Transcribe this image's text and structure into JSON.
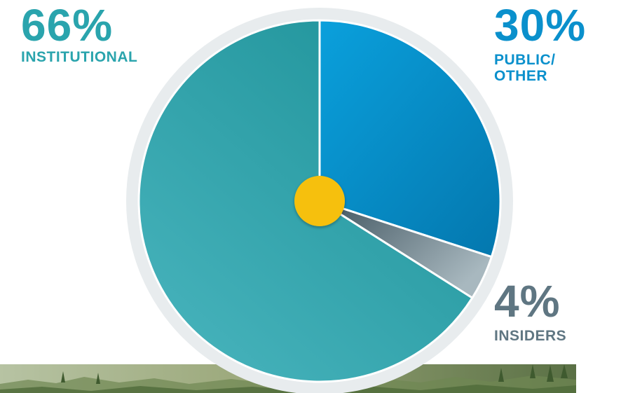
{
  "chart_data": {
    "type": "pie",
    "slices": [
      {
        "label": "PUBLIC/ OTHER",
        "value": 30,
        "value_label": "30%",
        "color": "#0a90cc"
      },
      {
        "label": "INSIDERS",
        "value": 4,
        "value_label": "4%",
        "color": "#5f7682"
      },
      {
        "label": "INSTITUTIONAL",
        "value": 66,
        "value_label": "66%",
        "color": "#2aa4ad"
      }
    ],
    "start_angle_deg": 0,
    "direction": "clockwise",
    "center_dot_color": "#f6c00e",
    "ring_color": "#e8ecee"
  }
}
